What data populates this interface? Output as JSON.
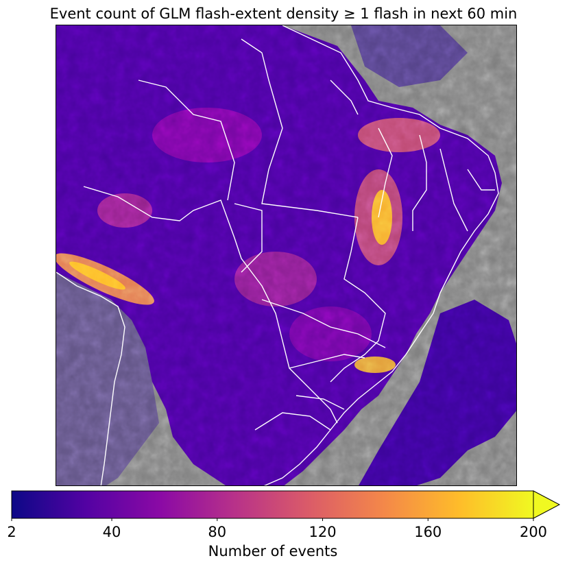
{
  "title": "Event count of GLM flash-extent density ≥ 1 flash in next 60 min",
  "map": {
    "background_color": "#808080",
    "border_color": "#ffffff",
    "colormap": "plasma"
  },
  "colorbar": {
    "label": "Number of events",
    "range": [
      2,
      200
    ],
    "extend": "max",
    "ticks": [
      "2",
      "40",
      "80",
      "120",
      "160",
      "200"
    ],
    "tick_values": [
      2,
      40,
      80,
      120,
      160,
      200
    ],
    "colors": [
      "#0d0887",
      "#5302a3",
      "#8b0aa5",
      "#b83289",
      "#db5c68",
      "#f48849",
      "#febc2a",
      "#f0f921"
    ]
  }
}
